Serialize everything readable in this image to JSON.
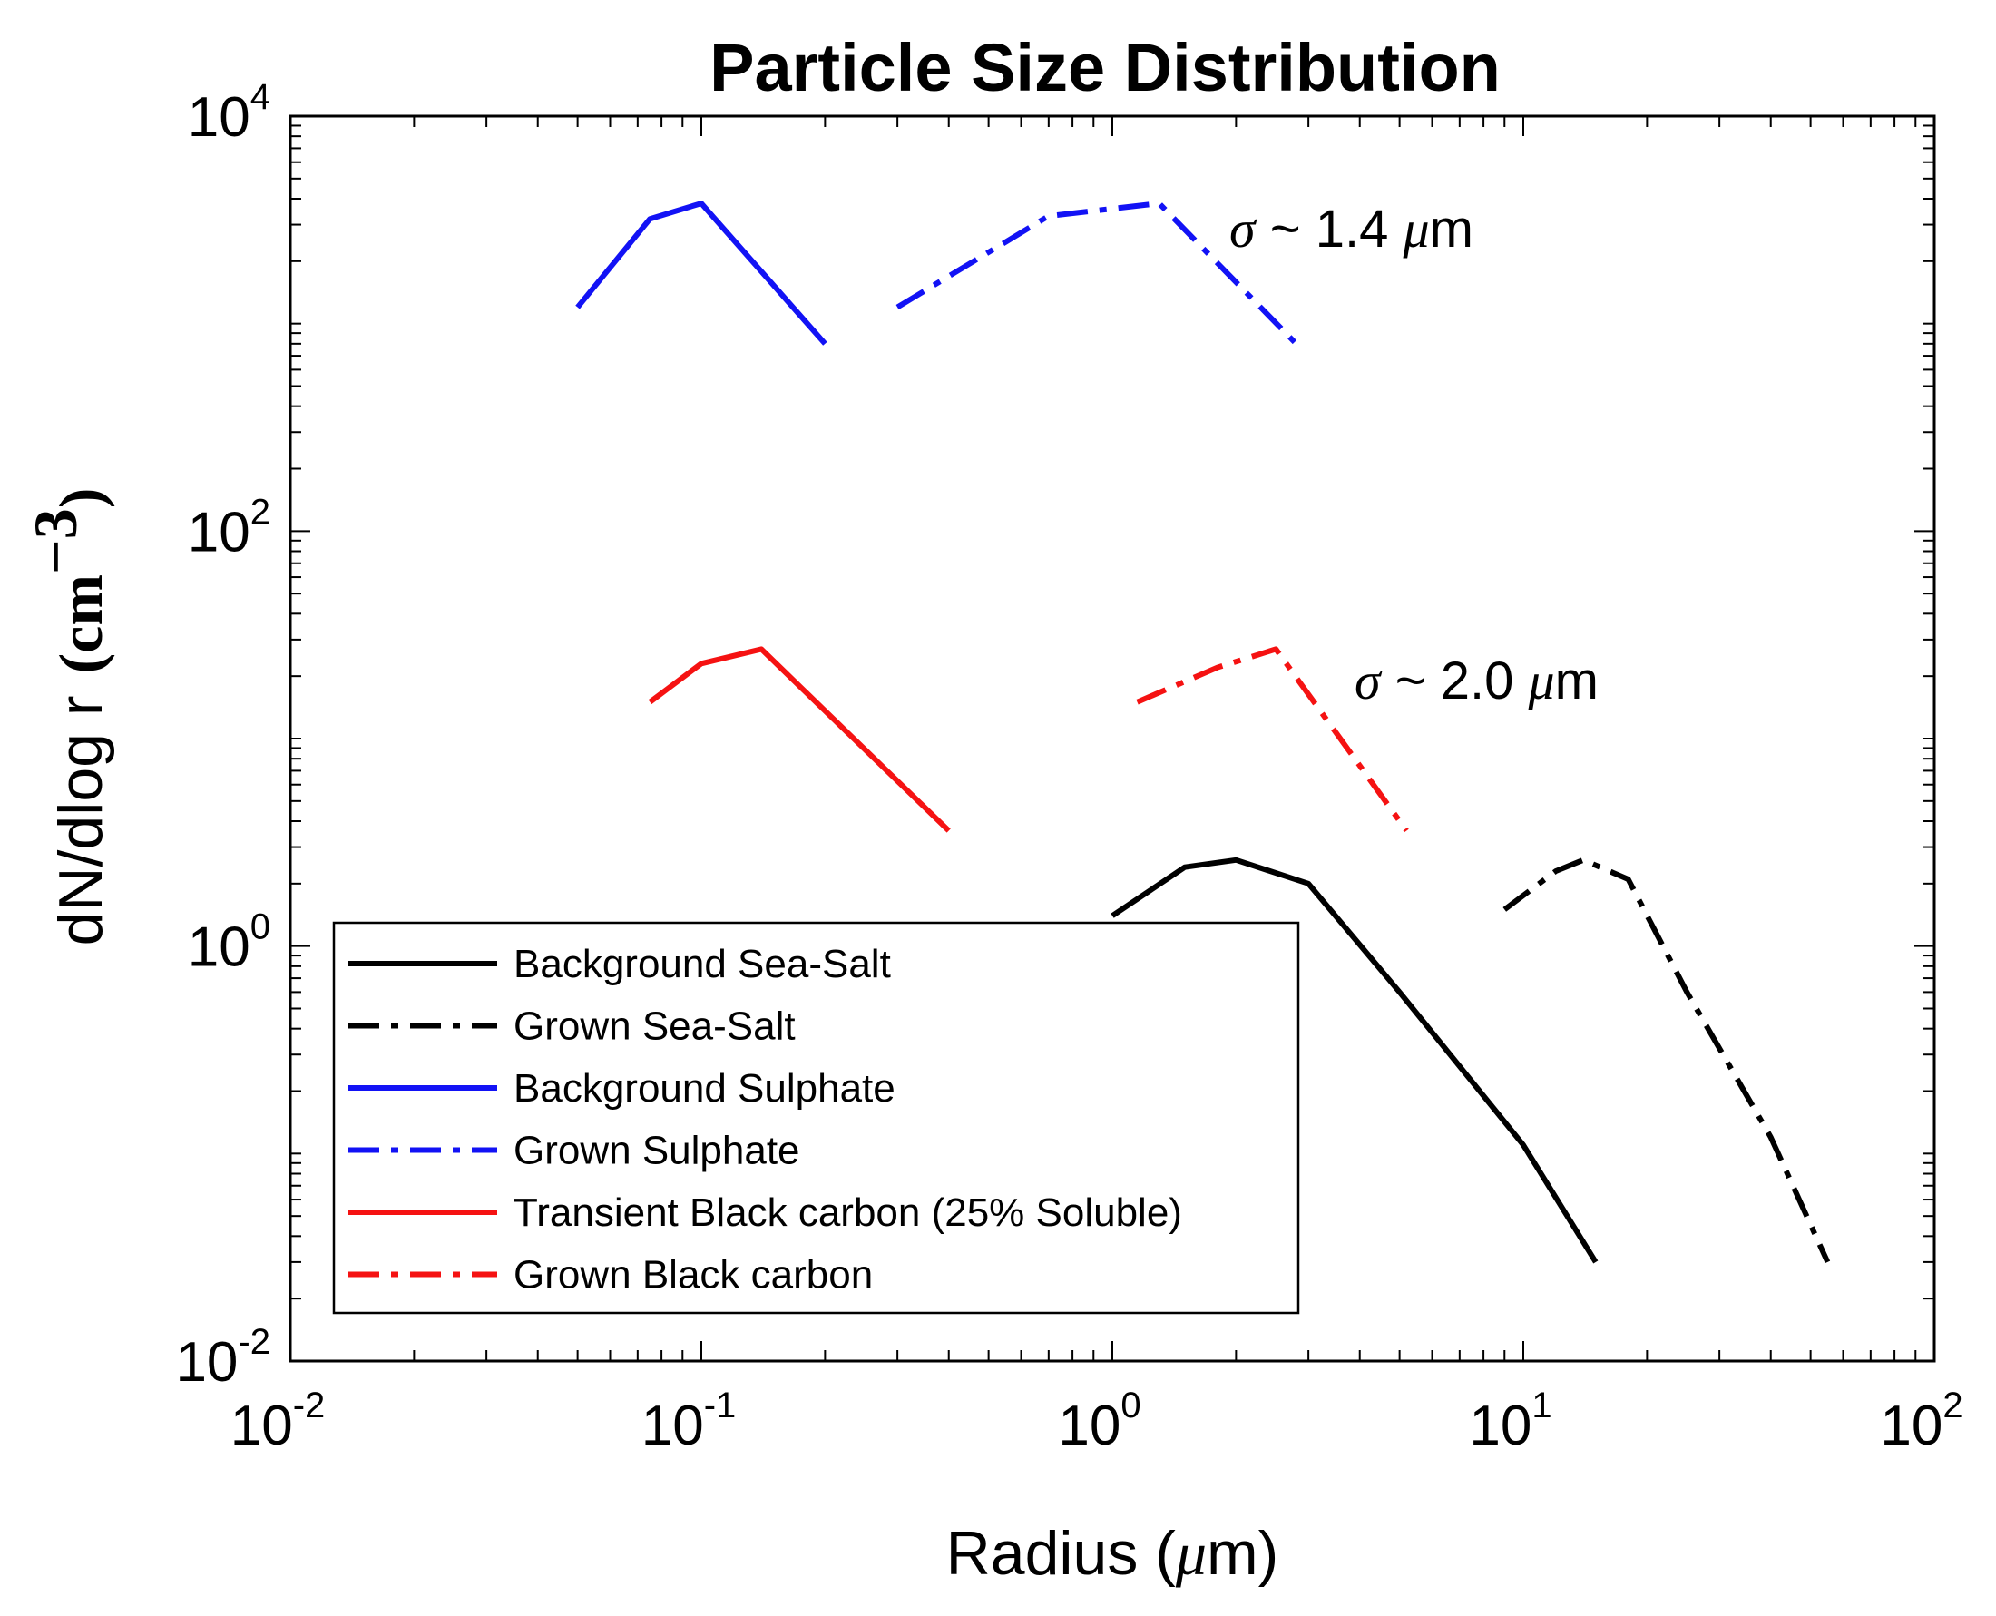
{
  "chart_data": {
    "type": "line",
    "title": "Particle Size Distribution",
    "xlabel": "Radius (μm)",
    "xlabel_parts": [
      "Radius (",
      "μ",
      "m)"
    ],
    "ylabel_parts": [
      "dN/dlog r",
      "(cm",
      "−3",
      ")"
    ],
    "x_scale": "log",
    "y_scale": "log",
    "xlim": [
      0.01,
      100
    ],
    "ylim": [
      0.01,
      10000
    ],
    "x_ticks": [
      {
        "base": "10",
        "exp": "-2",
        "value": 0.01
      },
      {
        "base": "10",
        "exp": "-1",
        "value": 0.1
      },
      {
        "base": "10",
        "exp": "0",
        "value": 1
      },
      {
        "base": "10",
        "exp": "1",
        "value": 10
      },
      {
        "base": "10",
        "exp": "2",
        "value": 100
      }
    ],
    "y_ticks": [
      {
        "base": "10",
        "exp": "-2",
        "value": 0.01
      },
      {
        "base": "10",
        "exp": "0",
        "value": 1
      },
      {
        "base": "10",
        "exp": "2",
        "value": 100
      },
      {
        "base": "10",
        "exp": "4",
        "value": 10000
      }
    ],
    "series": [
      {
        "name": "Background Sea-Salt",
        "color": "#000000",
        "style": "solid",
        "x": [
          1.0,
          1.5,
          2.0,
          3.0,
          5.0,
          10.0,
          15.0
        ],
        "y": [
          1.4,
          2.4,
          2.6,
          2.0,
          0.6,
          0.11,
          0.03
        ]
      },
      {
        "name": "Grown Sea-Salt",
        "color": "#000000",
        "style": "dashdot",
        "x": [
          9.0,
          12.0,
          14.0,
          18.0,
          25.0,
          40.0,
          55.0
        ],
        "y": [
          1.5,
          2.3,
          2.6,
          2.1,
          0.6,
          0.12,
          0.03
        ]
      },
      {
        "name": "Background Sulphate",
        "color": "#1212f5",
        "style": "solid",
        "x": [
          0.05,
          0.075,
          0.1,
          0.2
        ],
        "y": [
          1200,
          3200,
          3800,
          800
        ]
      },
      {
        "name": "Grown Sulphate",
        "color": "#1212f5",
        "style": "dashdot",
        "x": [
          0.3,
          0.7,
          1.3,
          2.8
        ],
        "y": [
          1200,
          3300,
          3800,
          800
        ]
      },
      {
        "name": "Transient Black carbon (25% Soluble)",
        "color": "#f51212",
        "style": "solid",
        "x": [
          0.075,
          0.1,
          0.14,
          0.4
        ],
        "y": [
          15,
          23,
          27,
          3.6
        ]
      },
      {
        "name": "Grown Black carbon",
        "color": "#f51212",
        "style": "dashdot",
        "x": [
          1.15,
          1.8,
          2.5,
          5.2
        ],
        "y": [
          15,
          22,
          27,
          3.6
        ]
      }
    ],
    "annotations": [
      {
        "sigma": "σ",
        "text": " ~ 1.4 ",
        "mu": "μ",
        "unit": "m"
      },
      {
        "sigma": "σ",
        "text": " ~ 2.0 ",
        "mu": "μ",
        "unit": "m"
      }
    ],
    "legend_position": "bottom-left"
  }
}
